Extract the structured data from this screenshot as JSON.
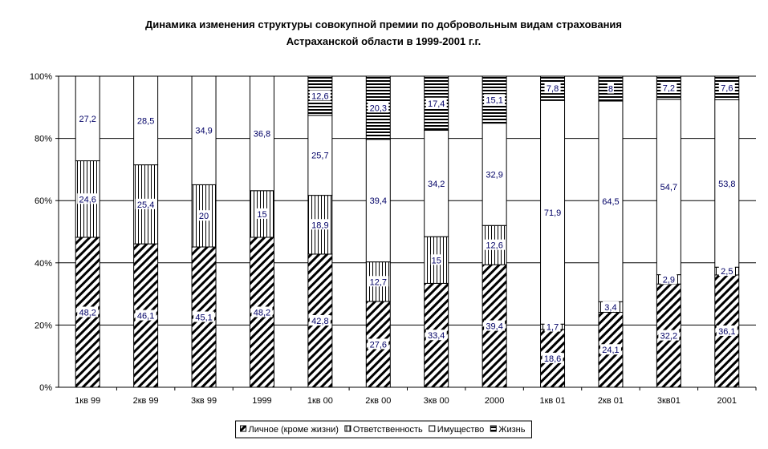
{
  "chart_data": {
    "type": "bar",
    "stacked": "percent",
    "title": "Динамика изменения структуры совокупной премии по добровольным видам страхования",
    "subtitle": "Астраханской области в 1999-2001 г.г.",
    "xlabel": "",
    "ylabel": "",
    "ylim": [
      0,
      100
    ],
    "yticks": [
      "0%",
      "20%",
      "40%",
      "60%",
      "80%",
      "100%"
    ],
    "grid": true,
    "legend_position": "bottom",
    "label_color": "#000066",
    "categories": [
      "1кв 99",
      "2кв 99",
      "3кв 99",
      "1999",
      "1кв 00",
      "2кв 00",
      "3кв 00",
      "2000",
      "1кв 01",
      "2кв 01",
      "3кв01",
      "2001"
    ],
    "series": [
      {
        "name": "Личное (кроме жизни)",
        "pattern": "diagonal-hatch",
        "values": [
          48.2,
          46.1,
          45.1,
          48.2,
          42.8,
          27.6,
          33.4,
          39.4,
          18.6,
          24.1,
          32.2,
          36.1
        ],
        "labels": [
          "48,2",
          "46,1",
          "45,1",
          "48,2",
          "42,8",
          "27,6",
          "33,4",
          "39,4",
          "18,6",
          "24,1",
          "32,2",
          "36,1"
        ]
      },
      {
        "name": "Ответственность",
        "pattern": "vertical-lines",
        "values": [
          24.6,
          25.4,
          20,
          15,
          18.9,
          12.7,
          15,
          12.6,
          1.7,
          3.4,
          2.9,
          2.5
        ],
        "labels": [
          "24,6",
          "25,4",
          "20",
          "15",
          "18,9",
          "12,7",
          "15",
          "12,6",
          "1,7",
          "3,4",
          "2,9",
          "2,5"
        ]
      },
      {
        "name": "Имущество",
        "pattern": "none",
        "values": [
          27.2,
          28.5,
          34.9,
          36.8,
          25.7,
          39.4,
          34.2,
          32.9,
          71.9,
          64.5,
          54.7,
          53.8
        ],
        "labels": [
          "27,2",
          "28,5",
          "34,9",
          "36,8",
          "25,7",
          "39,4",
          "34,2",
          "32,9",
          "71,9",
          "64,5",
          "54,7",
          "53,8"
        ]
      },
      {
        "name": "Жизнь",
        "pattern": "horizontal-lines",
        "values": [
          0,
          0,
          0,
          0,
          12.6,
          20.3,
          17.4,
          15.1,
          7.8,
          8,
          7.2,
          7.6
        ],
        "labels": [
          "",
          "",
          "",
          "",
          "12,6",
          "20,3",
          "17,4",
          "15,1",
          "7,8",
          "8",
          "7,2",
          "7,6"
        ]
      }
    ]
  }
}
